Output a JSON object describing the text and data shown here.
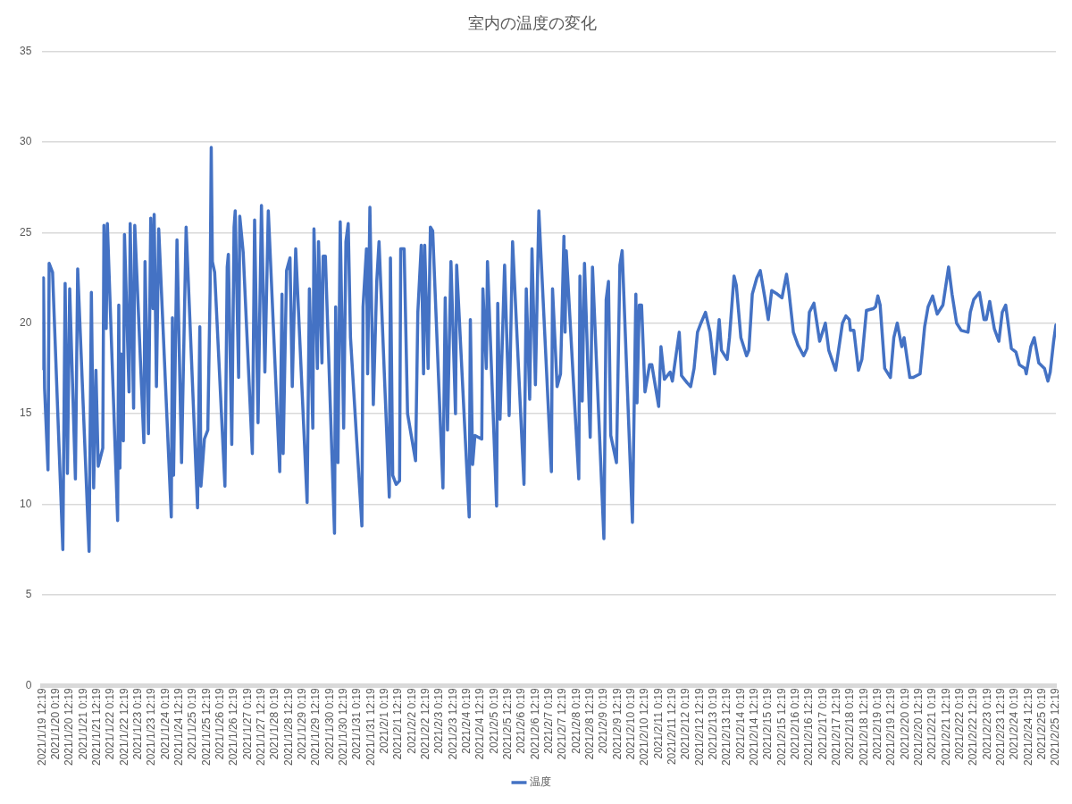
{
  "chart_data": {
    "type": "line",
    "title": "室内の温度の変化",
    "grid": "y",
    "legend": "bottom",
    "marker": "none",
    "line_style": "solid",
    "ylim": [
      0,
      35
    ],
    "yticks": [
      0,
      5,
      10,
      15,
      20,
      25,
      30,
      35
    ],
    "xlim": [
      "2021-01-19T12:19",
      "2021-02-25T12:19"
    ],
    "xticks": [
      {
        "value": "2021-01-19T12:19",
        "label": "2021/1/19 12:19"
      },
      {
        "value": "2021-01-20T00:19",
        "label": "2021/1/20 0:19"
      },
      {
        "value": "2021-01-20T12:19",
        "label": "2021/1/20 12:19"
      },
      {
        "value": "2021-01-21T00:19",
        "label": "2021/1/21 0:19"
      },
      {
        "value": "2021-01-21T12:19",
        "label": "2021/1/21 12:19"
      },
      {
        "value": "2021-01-22T00:19",
        "label": "2021/1/22 0:19"
      },
      {
        "value": "2021-01-22T12:19",
        "label": "2021/1/22 12:19"
      },
      {
        "value": "2021-01-23T00:19",
        "label": "2021/1/23 0:19"
      },
      {
        "value": "2021-01-23T12:19",
        "label": "2021/1/23 12:19"
      },
      {
        "value": "2021-01-24T00:19",
        "label": "2021/1/24 0:19"
      },
      {
        "value": "2021-01-24T12:19",
        "label": "2021/1/24 12:19"
      },
      {
        "value": "2021-01-25T00:19",
        "label": "2021/1/25 0:19"
      },
      {
        "value": "2021-01-25T12:19",
        "label": "2021/1/25 12:19"
      },
      {
        "value": "2021-01-26T00:19",
        "label": "2021/1/26 0:19"
      },
      {
        "value": "2021-01-26T12:19",
        "label": "2021/1/26 12:19"
      },
      {
        "value": "2021-01-27T00:19",
        "label": "2021/1/27 0:19"
      },
      {
        "value": "2021-01-27T12:19",
        "label": "2021/1/27 12:19"
      },
      {
        "value": "2021-01-28T00:19",
        "label": "2021/1/28 0:19"
      },
      {
        "value": "2021-01-28T12:19",
        "label": "2021/1/28 12:19"
      },
      {
        "value": "2021-01-29T00:19",
        "label": "2021/1/29 0:19"
      },
      {
        "value": "2021-01-29T12:19",
        "label": "2021/1/29 12:19"
      },
      {
        "value": "2021-01-30T00:19",
        "label": "2021/1/30 0:19"
      },
      {
        "value": "2021-01-30T12:19",
        "label": "2021/1/30 12:19"
      },
      {
        "value": "2021-01-31T00:19",
        "label": "2021/1/31 0:19"
      },
      {
        "value": "2021-01-31T12:19",
        "label": "2021/1/31 12:19"
      },
      {
        "value": "2021-02-01T00:19",
        "label": "2021/2/1 0:19"
      },
      {
        "value": "2021-02-01T12:19",
        "label": "2021/2/1 12:19"
      },
      {
        "value": "2021-02-02T00:19",
        "label": "2021/2/2 0:19"
      },
      {
        "value": "2021-02-02T12:19",
        "label": "2021/2/2 12:19"
      },
      {
        "value": "2021-02-03T00:19",
        "label": "2021/2/3 0:19"
      },
      {
        "value": "2021-02-03T12:19",
        "label": "2021/2/3 12:19"
      },
      {
        "value": "2021-02-04T00:19",
        "label": "2021/2/4 0:19"
      },
      {
        "value": "2021-02-04T12:19",
        "label": "2021/2/4 12:19"
      },
      {
        "value": "2021-02-05T00:19",
        "label": "2021/2/5 0:19"
      },
      {
        "value": "2021-02-05T12:19",
        "label": "2021/2/5 12:19"
      },
      {
        "value": "2021-02-06T00:19",
        "label": "2021/2/6 0:19"
      },
      {
        "value": "2021-02-06T12:19",
        "label": "2021/2/6 12:19"
      },
      {
        "value": "2021-02-07T00:19",
        "label": "2021/2/7 0:19"
      },
      {
        "value": "2021-02-07T12:19",
        "label": "2021/2/7 12:19"
      },
      {
        "value": "2021-02-08T00:19",
        "label": "2021/2/8 0:19"
      },
      {
        "value": "2021-02-08T12:19",
        "label": "2021/2/8 12:19"
      },
      {
        "value": "2021-02-09T00:19",
        "label": "2021/2/9 0:19"
      },
      {
        "value": "2021-02-09T12:19",
        "label": "2021/2/9 12:19"
      },
      {
        "value": "2021-02-10T00:19",
        "label": "2021/2/10 0:19"
      },
      {
        "value": "2021-02-10T12:19",
        "label": "2021/2/10 12:19"
      },
      {
        "value": "2021-02-11T00:19",
        "label": "2021/2/11 0:19"
      },
      {
        "value": "2021-02-11T12:19",
        "label": "2021/2/11 12:19"
      },
      {
        "value": "2021-02-12T00:19",
        "label": "2021/2/12 0:19"
      },
      {
        "value": "2021-02-12T12:19",
        "label": "2021/2/12 12:19"
      },
      {
        "value": "2021-02-13T00:19",
        "label": "2021/2/13 0:19"
      },
      {
        "value": "2021-02-13T12:19",
        "label": "2021/2/13 12:19"
      },
      {
        "value": "2021-02-14T00:19",
        "label": "2021/2/14 0:19"
      },
      {
        "value": "2021-02-14T12:19",
        "label": "2021/2/14 12:19"
      },
      {
        "value": "2021-02-15T00:19",
        "label": "2021/2/15 0:19"
      },
      {
        "value": "2021-02-15T12:19",
        "label": "2021/2/15 12:19"
      },
      {
        "value": "2021-02-16T00:19",
        "label": "2021/2/16 0:19"
      },
      {
        "value": "2021-02-16T12:19",
        "label": "2021/2/16 12:19"
      },
      {
        "value": "2021-02-17T00:19",
        "label": "2021/2/17 0:19"
      },
      {
        "value": "2021-02-17T12:19",
        "label": "2021/2/17 12:19"
      },
      {
        "value": "2021-02-18T00:19",
        "label": "2021/2/18 0:19"
      },
      {
        "value": "2021-02-18T12:19",
        "label": "2021/2/18 12:19"
      },
      {
        "value": "2021-02-19T00:19",
        "label": "2021/2/19 0:19"
      },
      {
        "value": "2021-02-19T12:19",
        "label": "2021/2/19 12:19"
      },
      {
        "value": "2021-02-20T00:19",
        "label": "2021/2/20 0:19"
      },
      {
        "value": "2021-02-20T12:19",
        "label": "2021/2/20 12:19"
      },
      {
        "value": "2021-02-21T00:19",
        "label": "2021/2/21 0:19"
      },
      {
        "value": "2021-02-21T12:19",
        "label": "2021/2/21 12:19"
      },
      {
        "value": "2021-02-22T00:19",
        "label": "2021/2/22 0:19"
      },
      {
        "value": "2021-02-22T12:19",
        "label": "2021/2/22 12:19"
      },
      {
        "value": "2021-02-23T00:19",
        "label": "2021/2/23 0:19"
      },
      {
        "value": "2021-02-23T12:19",
        "label": "2021/2/23 12:19"
      },
      {
        "value": "2021-02-24T00:19",
        "label": "2021/2/24 0:19"
      },
      {
        "value": "2021-02-24T12:19",
        "label": "2021/2/24 12:19"
      },
      {
        "value": "2021-02-25T00:19",
        "label": "2021/2/25 0:19"
      },
      {
        "value": "2021-02-25T12:19",
        "label": "2021/2/25 12:19"
      }
    ],
    "series": [
      {
        "name": "温度",
        "color": "#4472c4",
        "x": [
          "2021-01-19T12:19",
          "2021-01-19T13:19",
          "2021-01-19T14:19",
          "2021-01-19T17:19",
          "2021-01-19T18:19",
          "2021-01-19T21:19",
          "2021-01-20T06:19",
          "2021-01-20T08:19",
          "2021-01-20T10:19",
          "2021-01-20T12:19",
          "2021-01-20T17:19",
          "2021-01-20T19:19",
          "2021-01-21T05:19",
          "2021-01-21T07:19",
          "2021-01-21T09:19",
          "2021-01-21T11:19",
          "2021-01-21T13:19",
          "2021-01-21T17:19",
          "2021-01-21T18:19",
          "2021-01-21T20:19",
          "2021-01-21T21:19",
          "2021-01-22T06:19",
          "2021-01-22T07:19",
          "2021-01-22T08:19",
          "2021-01-22T09:19",
          "2021-01-22T11:19",
          "2021-01-22T12:19",
          "2021-01-22T16:19",
          "2021-01-22T17:19",
          "2021-01-22T20:19",
          "2021-01-22T21:19",
          "2021-01-23T05:19",
          "2021-01-23T06:19",
          "2021-01-23T09:19",
          "2021-01-23T11:19",
          "2021-01-23T13:19",
          "2021-01-23T14:19",
          "2021-01-23T16:19",
          "2021-01-23T18:19",
          "2021-01-24T05:19",
          "2021-01-24T06:19",
          "2021-01-24T07:19",
          "2021-01-24T10:19",
          "2021-01-24T14:19",
          "2021-01-24T18:19",
          "2021-01-25T04:19",
          "2021-01-25T06:19",
          "2021-01-25T07:19",
          "2021-01-25T10:19",
          "2021-01-25T13:19",
          "2021-01-25T15:19",
          "2021-01-25T16:19",
          "2021-01-25T17:19",
          "2021-01-25T19:19",
          "2021-01-26T04:19",
          "2021-01-26T06:19",
          "2021-01-26T07:19",
          "2021-01-26T10:19",
          "2021-01-26T12:19",
          "2021-01-26T13:19",
          "2021-01-26T16:19",
          "2021-01-26T17:19",
          "2021-01-26T20:19",
          "2021-01-27T04:19",
          "2021-01-27T06:19",
          "2021-01-27T09:19",
          "2021-01-27T12:19",
          "2021-01-27T15:19",
          "2021-01-27T18:19",
          "2021-01-28T04:19",
          "2021-01-28T06:19",
          "2021-01-28T07:19",
          "2021-01-28T10:19",
          "2021-01-28T13:19",
          "2021-01-28T15:19",
          "2021-01-28T18:19",
          "2021-01-29T04:19",
          "2021-01-29T06:19",
          "2021-01-29T09:19",
          "2021-01-29T10:19",
          "2021-01-29T13:19",
          "2021-01-29T14:19",
          "2021-01-29T17:19",
          "2021-01-29T18:19",
          "2021-01-29T20:19",
          "2021-01-30T04:19",
          "2021-01-30T05:19",
          "2021-01-30T07:19",
          "2021-01-30T09:19",
          "2021-01-30T12:19",
          "2021-01-30T14:19",
          "2021-01-30T16:19",
          "2021-01-30T18:19",
          "2021-01-31T04:19",
          "2021-01-31T05:19",
          "2021-01-31T08:19",
          "2021-01-31T09:19",
          "2021-01-31T11:19",
          "2021-01-31T14:19",
          "2021-01-31T17:19",
          "2021-01-31T19:19",
          "2021-02-01T04:19",
          "2021-02-01T05:19",
          "2021-02-01T07:19",
          "2021-02-01T10:19",
          "2021-02-01T13:19",
          "2021-02-01T14:19",
          "2021-02-01T17:19",
          "2021-02-01T20:19",
          "2021-02-02T03:19",
          "2021-02-02T05:19",
          "2021-02-02T08:19",
          "2021-02-02T10:19",
          "2021-02-02T11:19",
          "2021-02-02T14:19",
          "2021-02-02T16:19",
          "2021-02-02T18:19",
          "2021-02-03T03:19",
          "2021-02-03T05:19",
          "2021-02-03T07:19",
          "2021-02-03T10:19",
          "2021-02-03T14:19",
          "2021-02-03T15:19",
          "2021-02-04T02:19",
          "2021-02-04T03:19",
          "2021-02-04T05:19",
          "2021-02-04T07:19",
          "2021-02-04T13:19",
          "2021-02-04T14:19",
          "2021-02-04T17:19",
          "2021-02-04T18:19",
          "2021-02-05T02:19",
          "2021-02-05T03:19",
          "2021-02-05T05:19",
          "2021-02-05T09:19",
          "2021-02-05T13:19",
          "2021-02-05T16:19",
          "2021-02-06T02:19",
          "2021-02-06T04:19",
          "2021-02-06T07:19",
          "2021-02-06T09:19",
          "2021-02-06T12:19",
          "2021-02-06T15:19",
          "2021-02-07T02:19",
          "2021-02-07T03:19",
          "2021-02-07T07:19",
          "2021-02-07T10:19",
          "2021-02-07T13:19",
          "2021-02-07T14:19",
          "2021-02-07T15:19",
          "2021-02-08T02:19",
          "2021-02-08T03:19",
          "2021-02-08T05:19",
          "2021-02-08T07:19",
          "2021-02-08T12:19",
          "2021-02-08T14:19",
          "2021-02-09T00:19",
          "2021-02-09T02:19",
          "2021-02-09T04:19",
          "2021-02-09T06:19",
          "2021-02-09T09:19",
          "2021-02-09T11:19",
          "2021-02-09T14:19",
          "2021-02-09T16:19",
          "2021-02-10T01:19",
          "2021-02-10T04:19",
          "2021-02-10T05:19",
          "2021-02-10T07:19",
          "2021-02-10T09:19",
          "2021-02-10T12:19",
          "2021-02-10T16:19",
          "2021-02-10T18:19",
          "2021-02-11T00:19",
          "2021-02-11T02:19",
          "2021-02-11T05:19",
          "2021-02-11T10:19",
          "2021-02-11T12:19",
          "2021-02-11T18:19",
          "2021-02-11T20:19",
          "2021-02-12T01:19",
          "2021-02-12T04:19",
          "2021-02-12T07:19",
          "2021-02-12T10:19",
          "2021-02-12T13:19",
          "2021-02-12T17:19",
          "2021-02-12T21:19",
          "2021-02-13T01:19",
          "2021-02-13T05:19",
          "2021-02-13T07:19",
          "2021-02-13T12:19",
          "2021-02-13T14:19",
          "2021-02-13T18:19",
          "2021-02-13T20:19",
          "2021-02-14T00:19",
          "2021-02-14T01:19",
          "2021-02-14T05:19",
          "2021-02-14T07:19",
          "2021-02-14T10:19",
          "2021-02-14T14:19",
          "2021-02-14T17:19",
          "2021-02-14T21:19",
          "2021-02-15T00:19",
          "2021-02-15T03:19",
          "2021-02-15T08:19",
          "2021-02-15T12:19",
          "2021-02-15T16:19",
          "2021-02-15T18:19",
          "2021-02-15T22:19",
          "2021-02-16T02:19",
          "2021-02-16T07:19",
          "2021-02-16T10:19",
          "2021-02-16T12:19",
          "2021-02-16T16:19",
          "2021-02-16T21:19",
          "2021-02-17T02:19",
          "2021-02-17T05:19",
          "2021-02-17T11:19",
          "2021-02-17T17:19",
          "2021-02-17T20:19",
          "2021-02-17T23:19",
          "2021-02-18T00:19",
          "2021-02-18T03:19",
          "2021-02-18T07:19",
          "2021-02-18T10:19",
          "2021-02-18T14:19",
          "2021-02-18T20:19",
          "2021-02-18T22:19",
          "2021-02-19T00:19",
          "2021-02-19T02:19",
          "2021-02-19T06:19",
          "2021-02-19T11:19",
          "2021-02-19T14:19",
          "2021-02-19T17:19",
          "2021-02-19T20:19",
          "2021-02-19T21:19",
          "2021-02-19T23:19",
          "2021-02-20T04:19",
          "2021-02-20T07:19",
          "2021-02-20T13:19",
          "2021-02-20T17:19",
          "2021-02-20T20:19",
          "2021-02-21T00:19",
          "2021-02-21T04:19",
          "2021-02-21T07:19",
          "2021-02-21T09:19",
          "2021-02-21T14:19",
          "2021-02-21T17:19",
          "2021-02-21T21:19",
          "2021-02-22T01:19",
          "2021-02-22T07:19",
          "2021-02-22T09:19",
          "2021-02-22T12:19",
          "2021-02-22T17:19",
          "2021-02-22T21:19",
          "2021-02-22T23:19",
          "2021-02-23T02:19",
          "2021-02-23T06:19",
          "2021-02-23T10:19",
          "2021-02-23T13:19",
          "2021-02-23T16:19",
          "2021-02-23T21:19",
          "2021-02-24T01:19",
          "2021-02-24T04:19",
          "2021-02-24T09:19",
          "2021-02-24T10:19",
          "2021-02-24T14:19",
          "2021-02-24T17:19",
          "2021-02-24T21:19",
          "2021-02-25T02:19",
          "2021-02-25T05:19",
          "2021-02-25T07:19",
          "2021-02-25T10:19",
          "2021-02-25T12:19"
        ],
        "values": [
          17.5,
          22.5,
          16.4,
          11.9,
          23.3,
          22.8,
          7.5,
          22.2,
          11.7,
          21.9,
          11.4,
          23.0,
          7.4,
          21.7,
          10.9,
          17.4,
          12.1,
          13.1,
          25.4,
          19.7,
          25.5,
          9.1,
          21.0,
          12.0,
          18.3,
          13.5,
          24.9,
          16.2,
          25.5,
          15.3,
          25.4,
          13.4,
          23.4,
          13.9,
          25.8,
          20.8,
          26.0,
          16.5,
          25.2,
          9.3,
          20.3,
          11.6,
          24.6,
          12.3,
          25.3,
          9.8,
          19.8,
          11.0,
          13.6,
          14.1,
          21.8,
          29.7,
          23.4,
          22.8,
          11.0,
          23.1,
          23.8,
          13.3,
          25.3,
          26.2,
          17.0,
          25.9,
          23.9,
          12.8,
          25.7,
          14.5,
          26.5,
          17.3,
          26.2,
          11.8,
          21.6,
          12.8,
          22.9,
          23.6,
          16.5,
          24.1,
          10.1,
          21.9,
          14.2,
          25.2,
          17.5,
          24.5,
          17.8,
          23.7,
          23.7,
          8.4,
          20.9,
          12.3,
          25.6,
          14.2,
          24.5,
          25.5,
          19.2,
          8.8,
          20.9,
          24.1,
          17.2,
          26.4,
          15.5,
          22.3,
          24.5,
          10.4,
          23.6,
          11.6,
          11.1,
          11.3,
          24.1,
          24.1,
          15.0,
          12.4,
          20.6,
          24.3,
          17.2,
          24.3,
          17.5,
          25.3,
          25.1,
          10.9,
          21.4,
          14.1,
          23.4,
          15.0,
          23.2,
          9.3,
          20.2,
          12.2,
          13.8,
          13.6,
          21.9,
          17.5,
          23.4,
          9.9,
          21.1,
          14.7,
          23.2,
          14.9,
          24.5,
          11.1,
          21.9,
          15.8,
          24.1,
          16.6,
          26.2,
          11.8,
          21.9,
          16.5,
          17.2,
          24.8,
          19.5,
          24.0,
          11.4,
          22.6,
          15.7,
          23.3,
          13.7,
          23.1,
          8.1,
          21.3,
          22.3,
          13.8,
          12.9,
          12.3,
          23.2,
          24.0,
          9.0,
          21.6,
          15.6,
          21.0,
          21.0,
          16.2,
          17.7,
          17.7,
          15.4,
          18.7,
          16.9,
          17.3,
          16.8,
          19.5,
          17.1,
          16.7,
          16.5,
          17.5,
          19.5,
          20.0,
          20.6,
          19.5,
          17.2,
          20.2,
          18.5,
          18.0,
          19.2,
          22.6,
          22.1,
          19.2,
          19.0,
          18.2,
          18.5,
          21.6,
          22.5,
          22.9,
          21.4,
          20.2,
          21.8,
          21.6,
          21.4,
          22.7,
          21.8,
          19.5,
          18.8,
          18.2,
          18.6,
          20.6,
          21.1,
          19.0,
          20.0,
          18.5,
          17.4,
          20.0,
          20.4,
          20.2,
          19.6,
          19.6,
          17.4,
          18.0,
          20.7,
          20.8,
          20.9,
          21.5,
          21.0,
          17.5,
          17.0,
          19.2,
          20.0,
          19.0,
          18.7,
          19.2,
          17.0,
          17.0,
          17.2,
          19.8,
          20.9,
          21.5,
          20.5,
          20.8,
          21.0,
          23.1,
          21.6,
          20.0,
          19.6,
          19.5,
          20.6,
          21.3,
          21.7,
          20.2,
          20.2,
          21.2,
          19.7,
          19.0,
          20.6,
          21.0,
          18.6,
          18.4,
          17.7,
          17.5,
          17.2,
          18.7,
          19.2,
          17.8,
          17.5,
          16.8,
          17.3,
          19.0,
          19.9
        ]
      }
    ]
  }
}
